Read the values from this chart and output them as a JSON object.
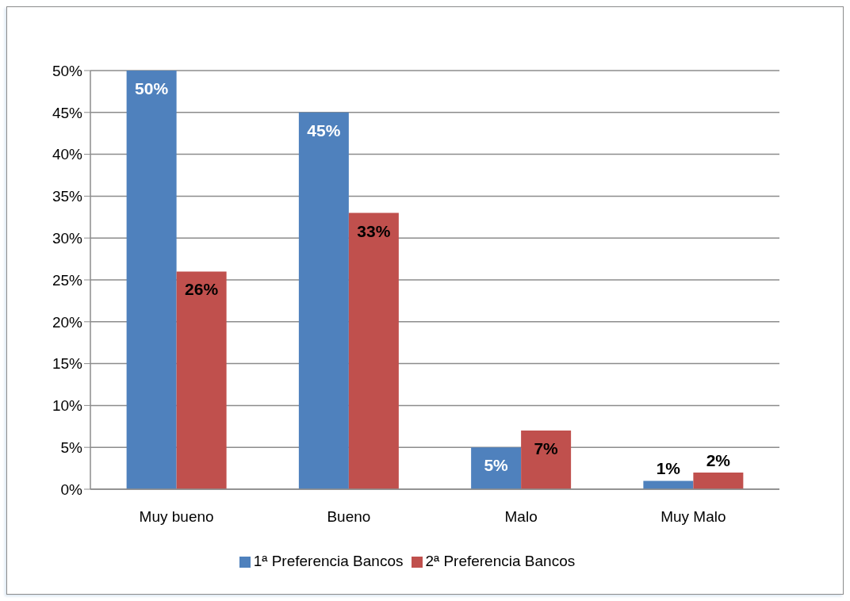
{
  "chart_data": {
    "type": "bar",
    "categories": [
      "Muy bueno",
      "Bueno",
      "Malo",
      "Muy Malo"
    ],
    "series": [
      {
        "name": "1ª Preferencia Bancos",
        "color": "#4f81bd",
        "values": [
          50,
          45,
          5,
          1
        ],
        "value_labels": [
          "50%",
          "45%",
          "5%",
          "1%"
        ]
      },
      {
        "name": "2ª Preferencia Bancos",
        "color": "#c0504d",
        "values": [
          26,
          33,
          7,
          2
        ],
        "value_labels": [
          "26%",
          "33%",
          "7%",
          "2%"
        ]
      }
    ],
    "ylim": [
      0,
      50
    ],
    "yticks": [
      {
        "value": 0,
        "label": "0%"
      },
      {
        "value": 5,
        "label": "5%"
      },
      {
        "value": 10,
        "label": "10%"
      },
      {
        "value": 15,
        "label": "15%"
      },
      {
        "value": 20,
        "label": "20%"
      },
      {
        "value": 25,
        "label": "25%"
      },
      {
        "value": 30,
        "label": "30%"
      },
      {
        "value": 35,
        "label": "35%"
      },
      {
        "value": 40,
        "label": "40%"
      },
      {
        "value": 45,
        "label": "45%"
      },
      {
        "value": 50,
        "label": "50%"
      }
    ],
    "grid": "y",
    "legend": "bottom"
  }
}
